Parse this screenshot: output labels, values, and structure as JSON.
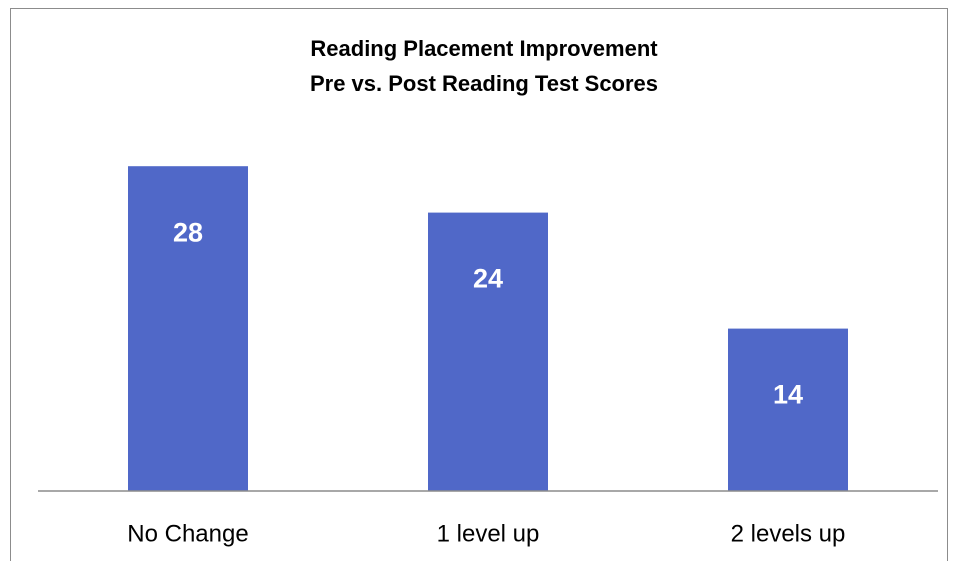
{
  "chart_data": {
    "type": "bar",
    "title": "Reading Placement Improvement",
    "subtitle": "Pre vs. Post Reading Test Scores",
    "categories": [
      "No Change",
      "1 level up",
      "2 levels up"
    ],
    "values": [
      28,
      24,
      14
    ],
    "color": "#5068c8",
    "ylim": [
      0,
      30
    ],
    "grid": false
  }
}
